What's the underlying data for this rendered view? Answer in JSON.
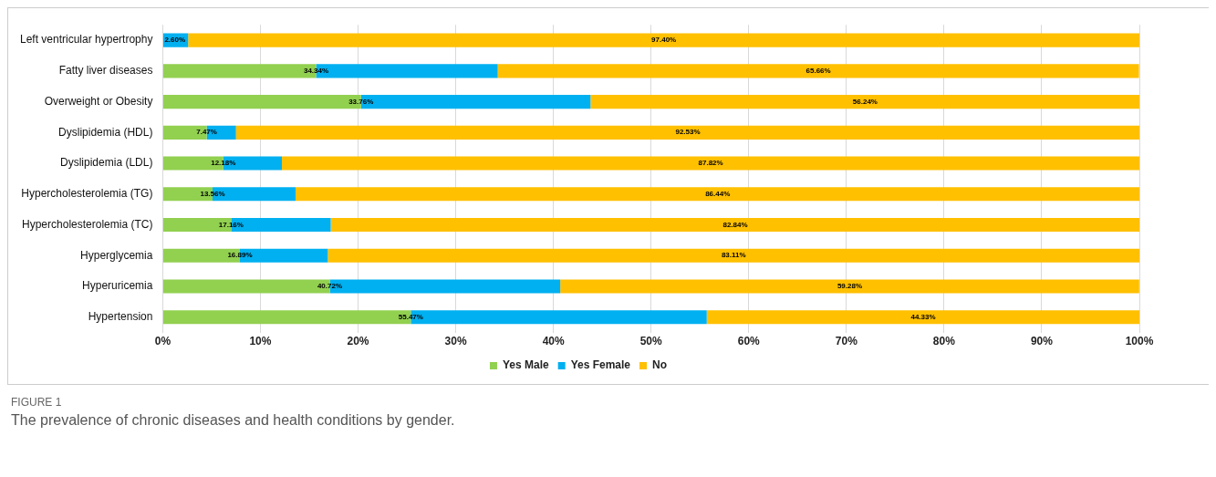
{
  "chart_data": {
    "type": "bar",
    "orientation": "horizontal",
    "stacked": true,
    "categories": [
      "Left ventricular hypertrophy",
      "Fatty liver diseases",
      "Overweight or Obesity",
      "Dyslipidemia (HDL)",
      "Dyslipidemia (LDL)",
      "Hypercholesterolemia (TG)",
      "Hypercholesterolemia (TC)",
      "Hyperglycemia",
      "Hyperuricemia",
      "Hypertension"
    ],
    "series": [
      {
        "name": "Yes Male",
        "color": "#92d050",
        "values": [
          0,
          15.7,
          20.3,
          4.5,
          6.2,
          5.1,
          7.0,
          7.9,
          17.1,
          25.4
        ]
      },
      {
        "name": "Yes Female",
        "color": "#00b0f0",
        "values": [
          2.6,
          18.6,
          23.5,
          3.0,
          6.0,
          8.5,
          10.2,
          9.0,
          23.6,
          30.3
        ]
      },
      {
        "name": "No",
        "color": "#ffc000",
        "values": [
          97.4,
          65.66,
          56.24,
          92.53,
          87.82,
          86.44,
          82.84,
          83.11,
          59.28,
          44.33
        ],
        "value_labels": [
          "97.40%",
          "65.66%",
          "56.24%",
          "92.53%",
          "87.82%",
          "86.44%",
          "82.84%",
          "83.11%",
          "59.28%",
          "44.33%"
        ]
      }
    ],
    "xlim": [
      0,
      100
    ],
    "xticks": [
      {
        "value": 0,
        "label": "0%"
      },
      {
        "value": 10,
        "label": "10%"
      },
      {
        "value": 20,
        "label": "20%"
      },
      {
        "value": 30,
        "label": "30%"
      },
      {
        "value": 40,
        "label": "40%"
      },
      {
        "value": 50,
        "label": "50%"
      },
      {
        "value": 60,
        "label": "60%"
      },
      {
        "value": 70,
        "label": "70%"
      },
      {
        "value": 80,
        "label": "80%"
      },
      {
        "value": 90,
        "label": "90%"
      },
      {
        "value": 100,
        "label": "100%"
      }
    ],
    "grid": "x",
    "legend": "bottom",
    "annotations": [
      "FIGURE 1",
      "The prevalence of chronic diseases and health conditions by gender.",
      {
        "text": "2.60%",
        "x": 0,
        "y": "Left ventricular hypertrophy"
      },
      {
        "text": "34.34%",
        "x": 15.7,
        "y": "Fatty liver diseases"
      },
      {
        "text": "33.76%",
        "x": 20.3,
        "y": "Overweight or Obesity"
      },
      {
        "text": "7.47%",
        "x": 4.5,
        "y": "Dyslipidemia (HDL)"
      },
      {
        "text": "12.18%",
        "x": 6.2,
        "y": "Dyslipidemia (LDL)"
      },
      {
        "text": "13.56%",
        "x": 5.1,
        "y": "Hypercholesterolemia (TG)"
      },
      {
        "text": "17.16%",
        "x": 7.0,
        "y": "Hypercholesterolemia (TC)"
      },
      {
        "text": "16.89%",
        "x": 7.9,
        "y": "Hyperglycemia"
      },
      {
        "text": "40.72%",
        "x": 17.1,
        "y": "Hyperuricemia"
      },
      {
        "text": "55.47%",
        "x": 25.4,
        "y": "Hypertension"
      }
    ]
  }
}
